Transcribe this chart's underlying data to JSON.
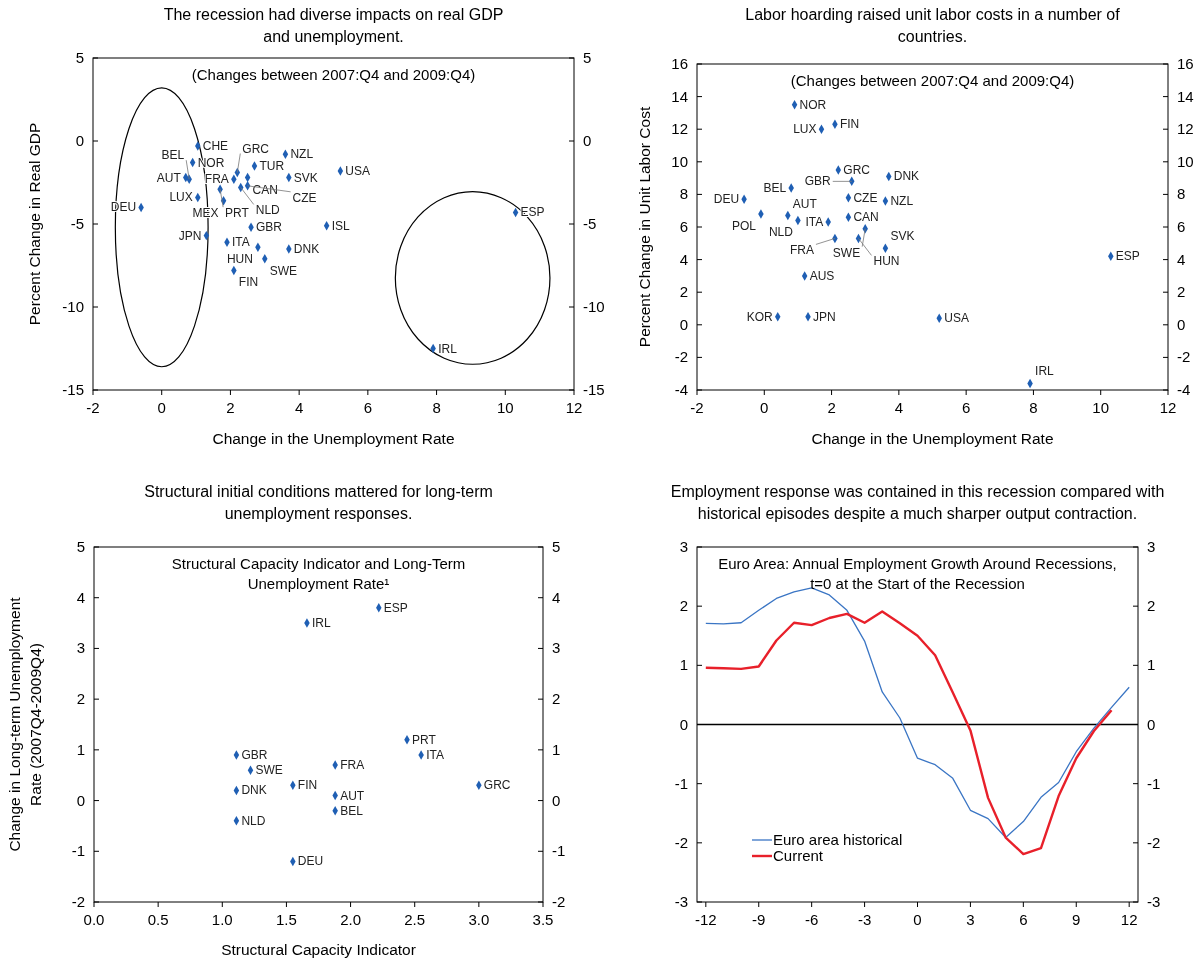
{
  "chart_data": [
    {
      "type": "scatter",
      "title": "The recession had diverse impacts on real GDP and unemployment.",
      "xlabel": "Change in the Unemployment Rate",
      "ylabel": "Percent Change in Real GDP",
      "marker": "diamond",
      "xlim": [
        -2,
        12
      ],
      "xticks": [
        -2,
        0,
        2,
        4,
        6,
        8,
        10,
        12
      ],
      "ylim": [
        -15,
        5
      ],
      "yticks": [
        -15,
        -10,
        -5,
        0,
        5
      ],
      "y2lim": [
        -15,
        5
      ],
      "y2ticks": [
        -15,
        -10,
        -5,
        0,
        5
      ],
      "series": [
        {
          "color": "#1f5fb4",
          "x": [
            1.05,
            0.9,
            0.7,
            0.8,
            1.05,
            -0.6,
            1.3,
            1.9,
            1.7,
            1.8,
            2.2,
            2.7,
            3.6,
            5.2,
            3.7,
            2.5,
            2.5,
            2.1,
            2.3,
            2.6,
            2.8,
            3.0,
            3.7,
            2.1,
            4.8,
            10.3,
            7.9
          ],
          "values": [
            -0.3,
            -1.3,
            -2.2,
            -2.3,
            -3.4,
            -4.0,
            -5.7,
            -6.1,
            -2.9,
            -3.6,
            -1.9,
            -1.5,
            -0.8,
            -1.8,
            -2.2,
            -2.2,
            -2.7,
            -2.3,
            -2.8,
            -5.2,
            -6.4,
            -7.1,
            -6.5,
            -7.8,
            -5.1,
            -4.3,
            -12.5
          ]
        }
      ],
      "annotations": [
        "(Changes between 2007:Q4 and 2009:Q4)",
        {
          "text": "CHE",
          "x": 1.05,
          "y": -0.3
        },
        {
          "text": "NOR",
          "x": 0.9,
          "y": -1.3
        },
        {
          "text": "AUT",
          "x": 0.7,
          "y": -2.2
        },
        {
          "text": "BEL",
          "x": 0.8,
          "y": -2.3
        },
        {
          "text": "LUX",
          "x": 1.05,
          "y": -3.4
        },
        {
          "text": "DEU",
          "x": -0.6,
          "y": -4.0
        },
        {
          "text": "JPN",
          "x": 1.3,
          "y": -5.7
        },
        {
          "text": "ITA",
          "x": 1.9,
          "y": -6.1
        },
        {
          "text": "PRT",
          "x": 1.7,
          "y": -2.9
        },
        {
          "text": "MEX",
          "x": 1.8,
          "y": -3.6
        },
        {
          "text": "GRC",
          "x": 2.2,
          "y": -1.9
        },
        {
          "text": "TUR",
          "x": 2.7,
          "y": -1.5
        },
        {
          "text": "NZL",
          "x": 3.6,
          "y": -0.8
        },
        {
          "text": "USA",
          "x": 5.2,
          "y": -1.8
        },
        {
          "text": "SVK",
          "x": 3.7,
          "y": -2.2
        },
        {
          "text": "CAN",
          "x": 2.5,
          "y": -2.2
        },
        {
          "text": "CZE",
          "x": 2.5,
          "y": -2.7
        },
        {
          "text": "FRA",
          "x": 2.1,
          "y": -2.3
        },
        {
          "text": "NLD",
          "x": 2.3,
          "y": -2.8
        },
        {
          "text": "GBR",
          "x": 2.6,
          "y": -5.2
        },
        {
          "text": "HUN",
          "x": 2.8,
          "y": -6.4
        },
        {
          "text": "SWE",
          "x": 3.0,
          "y": -7.1
        },
        {
          "text": "DNK",
          "x": 3.7,
          "y": -6.5
        },
        {
          "text": "FIN",
          "x": 2.1,
          "y": -7.8
        },
        {
          "text": "ISL",
          "x": 4.8,
          "y": -5.1
        },
        {
          "text": "ESP",
          "x": 10.3,
          "y": -4.3
        },
        {
          "text": "IRL",
          "x": 7.9,
          "y": -12.5
        }
      ]
    },
    {
      "type": "scatter",
      "title": "Labor hoarding raised unit labor costs in a number of countries.",
      "xlabel": "Change in the Unemployment Rate",
      "ylabel": "Percent Change in Unit Labor Cost",
      "marker": "diamond",
      "xlim": [
        -2,
        12
      ],
      "xticks": [
        -2,
        0,
        2,
        4,
        6,
        8,
        10,
        12
      ],
      "ylim": [
        -4,
        16
      ],
      "yticks": [
        -4,
        -2,
        0,
        2,
        4,
        6,
        8,
        10,
        12,
        14,
        16
      ],
      "y2lim": [
        -4,
        16
      ],
      "y2ticks": [
        -4,
        -2,
        0,
        2,
        4,
        6,
        8,
        10,
        12,
        14,
        16
      ],
      "series": [
        {
          "color": "#1f5fb4",
          "x": [
            0.9,
            1.7,
            2.1,
            2.2,
            2.6,
            3.7,
            0.8,
            -0.6,
            2.5,
            3.6,
            -0.1,
            0.7,
            1.0,
            1.9,
            2.5,
            3.0,
            2.8,
            2.1,
            3.6,
            10.3,
            1.2,
            0.4,
            1.3,
            5.2,
            7.9
          ],
          "values": [
            13.5,
            12.0,
            12.3,
            9.5,
            8.8,
            9.1,
            8.4,
            7.7,
            7.8,
            7.6,
            6.8,
            6.7,
            6.4,
            6.3,
            6.6,
            5.9,
            5.3,
            5.3,
            4.7,
            4.2,
            3.0,
            0.5,
            0.5,
            0.4,
            -3.6
          ]
        }
      ],
      "annotations": [
        "(Changes between 2007:Q4 and 2009:Q4)",
        {
          "text": "NOR",
          "x": 0.9,
          "y": 13.5
        },
        {
          "text": "LUX",
          "x": 1.7,
          "y": 12.0
        },
        {
          "text": "FIN",
          "x": 2.1,
          "y": 12.3
        },
        {
          "text": "GRC",
          "x": 2.2,
          "y": 9.5
        },
        {
          "text": "GBR",
          "x": 2.6,
          "y": 8.8
        },
        {
          "text": "DNK",
          "x": 3.7,
          "y": 9.1
        },
        {
          "text": "BEL",
          "x": 0.8,
          "y": 8.4
        },
        {
          "text": "DEU",
          "x": -0.6,
          "y": 7.7
        },
        {
          "text": "CZE",
          "x": 2.5,
          "y": 7.8
        },
        {
          "text": "NZL",
          "x": 3.6,
          "y": 7.6
        },
        {
          "text": "POL",
          "x": -0.1,
          "y": 6.8
        },
        {
          "text": "AUT",
          "x": 0.7,
          "y": 6.7
        },
        {
          "text": "NLD",
          "x": 1.0,
          "y": 6.4
        },
        {
          "text": "ITA",
          "x": 1.9,
          "y": 6.3
        },
        {
          "text": "CAN",
          "x": 2.5,
          "y": 6.6
        },
        {
          "text": "SWE",
          "x": 3.0,
          "y": 5.9
        },
        {
          "text": "HUN",
          "x": 2.8,
          "y": 5.3
        },
        {
          "text": "FRA",
          "x": 2.1,
          "y": 5.3
        },
        {
          "text": "SVK",
          "x": 3.6,
          "y": 4.7
        },
        {
          "text": "ESP",
          "x": 10.3,
          "y": 4.2
        },
        {
          "text": "AUS",
          "x": 1.2,
          "y": 3.0
        },
        {
          "text": "KOR",
          "x": 0.4,
          "y": 0.5
        },
        {
          "text": "JPN",
          "x": 1.3,
          "y": 0.5
        },
        {
          "text": "USA",
          "x": 5.2,
          "y": 0.4
        },
        {
          "text": "IRL",
          "x": 7.9,
          "y": -3.6
        }
      ]
    },
    {
      "type": "scatter",
      "title": "Structural initial conditions mattered for long-term unemployment responses.",
      "xlabel": "Structural Capacity Indicator",
      "ylabel": "Change in Long-term Unemployment Rate (2007Q4-2009Q4)",
      "marker": "diamond",
      "xlim": [
        0,
        3.5
      ],
      "xticks": [
        {
          "value": 0,
          "label": "0.0"
        },
        {
          "value": 0.5,
          "label": "0.5"
        },
        {
          "value": 1,
          "label": "1.0"
        },
        {
          "value": 1.5,
          "label": "1.5"
        },
        {
          "value": 2,
          "label": "2.0"
        },
        {
          "value": 2.5,
          "label": "2.5"
        },
        {
          "value": 3,
          "label": "3.0"
        },
        {
          "value": 3.5,
          "label": "3.5"
        }
      ],
      "ylim": [
        -2,
        5
      ],
      "yticks": [
        -2,
        -1,
        0,
        1,
        2,
        3,
        4,
        5
      ],
      "y2lim": [
        -2,
        5
      ],
      "y2ticks": [
        -2,
        -1,
        0,
        1,
        2,
        3,
        4,
        5
      ],
      "series": [
        {
          "color": "#1f5fb4",
          "x": [
            2.22,
            1.66,
            2.44,
            2.55,
            1.11,
            1.22,
            1.88,
            1.55,
            1.11,
            1.88,
            3.0,
            1.88,
            1.11,
            1.55
          ],
          "values": [
            3.8,
            3.5,
            1.2,
            0.9,
            0.9,
            0.6,
            0.7,
            0.3,
            0.2,
            0.1,
            0.3,
            -0.2,
            -0.4,
            -1.2
          ]
        }
      ],
      "annotations": [
        "Structural Capacity Indicator and Long-Term Unemployment Rate¹",
        {
          "text": "ESP",
          "x": 2.22,
          "y": 3.8
        },
        {
          "text": "IRL",
          "x": 1.66,
          "y": 3.5
        },
        {
          "text": "PRT",
          "x": 2.44,
          "y": 1.2
        },
        {
          "text": "ITA",
          "x": 2.55,
          "y": 0.9
        },
        {
          "text": "GBR",
          "x": 1.11,
          "y": 0.9
        },
        {
          "text": "SWE",
          "x": 1.22,
          "y": 0.6
        },
        {
          "text": "FRA",
          "x": 1.88,
          "y": 0.7
        },
        {
          "text": "FIN",
          "x": 1.55,
          "y": 0.3
        },
        {
          "text": "DNK",
          "x": 1.11,
          "y": 0.2
        },
        {
          "text": "AUT",
          "x": 1.88,
          "y": 0.1
        },
        {
          "text": "GRC",
          "x": 3.0,
          "y": 0.3
        },
        {
          "text": "BEL",
          "x": 1.88,
          "y": -0.2
        },
        {
          "text": "NLD",
          "x": 1.11,
          "y": -0.4
        },
        {
          "text": "DEU",
          "x": 1.55,
          "y": -1.2
        }
      ]
    },
    {
      "type": "line",
      "title": "Employment  response was contained in this recession compared with historical episodes despite a much sharper output contraction.",
      "legend": "bottom left",
      "xlim": [
        -12.5,
        12.5
      ],
      "xticks": [
        -12,
        -9,
        -6,
        -3,
        0,
        3,
        6,
        9,
        12
      ],
      "ylim": [
        -3,
        3
      ],
      "yticks": [
        -3,
        -2,
        -1,
        0,
        1,
        2,
        3
      ],
      "y2lim": [
        -3,
        3
      ],
      "y2ticks": [
        -3,
        -2,
        -1,
        0,
        1,
        2,
        3
      ],
      "ref_lines": [
        {
          "axis": "y",
          "value": 0,
          "color": "#000000"
        }
      ],
      "annotations": [
        "Euro Area: Annual Employment Growth Around Recessions, t=0 at the Start of the Recession"
      ],
      "series": [
        {
          "name": "Euro area historical",
          "color": "#3a75c4",
          "x": [
            -12,
            -11,
            -10,
            -9,
            -8,
            -7,
            -6,
            -5,
            -4,
            -3,
            -2,
            -1,
            0,
            1,
            2,
            3,
            4,
            5,
            6,
            7,
            8,
            9,
            10,
            11,
            12
          ],
          "values": [
            1.71,
            1.7,
            1.72,
            1.93,
            2.13,
            2.24,
            2.31,
            2.19,
            1.93,
            1.41,
            0.55,
            0.11,
            -0.57,
            -0.68,
            -0.91,
            -1.45,
            -1.59,
            -1.91,
            -1.64,
            -1.23,
            -0.98,
            -0.46,
            -0.06,
            0.29,
            0.63
          ]
        },
        {
          "name": "Current",
          "color": "#e8202a",
          "x": [
            -12,
            -11,
            -10,
            -9,
            -8,
            -7,
            -6,
            -5,
            -4,
            -3,
            -2,
            -1,
            0,
            1,
            2,
            3,
            4,
            5,
            6,
            7,
            8,
            9,
            10,
            11
          ],
          "values": [
            0.96,
            0.95,
            0.94,
            0.98,
            1.42,
            1.72,
            1.68,
            1.8,
            1.87,
            1.72,
            1.91,
            1.71,
            1.5,
            1.17,
            0.54,
            -0.1,
            -1.24,
            -1.91,
            -2.19,
            -2.09,
            -1.21,
            -0.57,
            -0.11,
            0.24
          ]
        }
      ]
    }
  ]
}
